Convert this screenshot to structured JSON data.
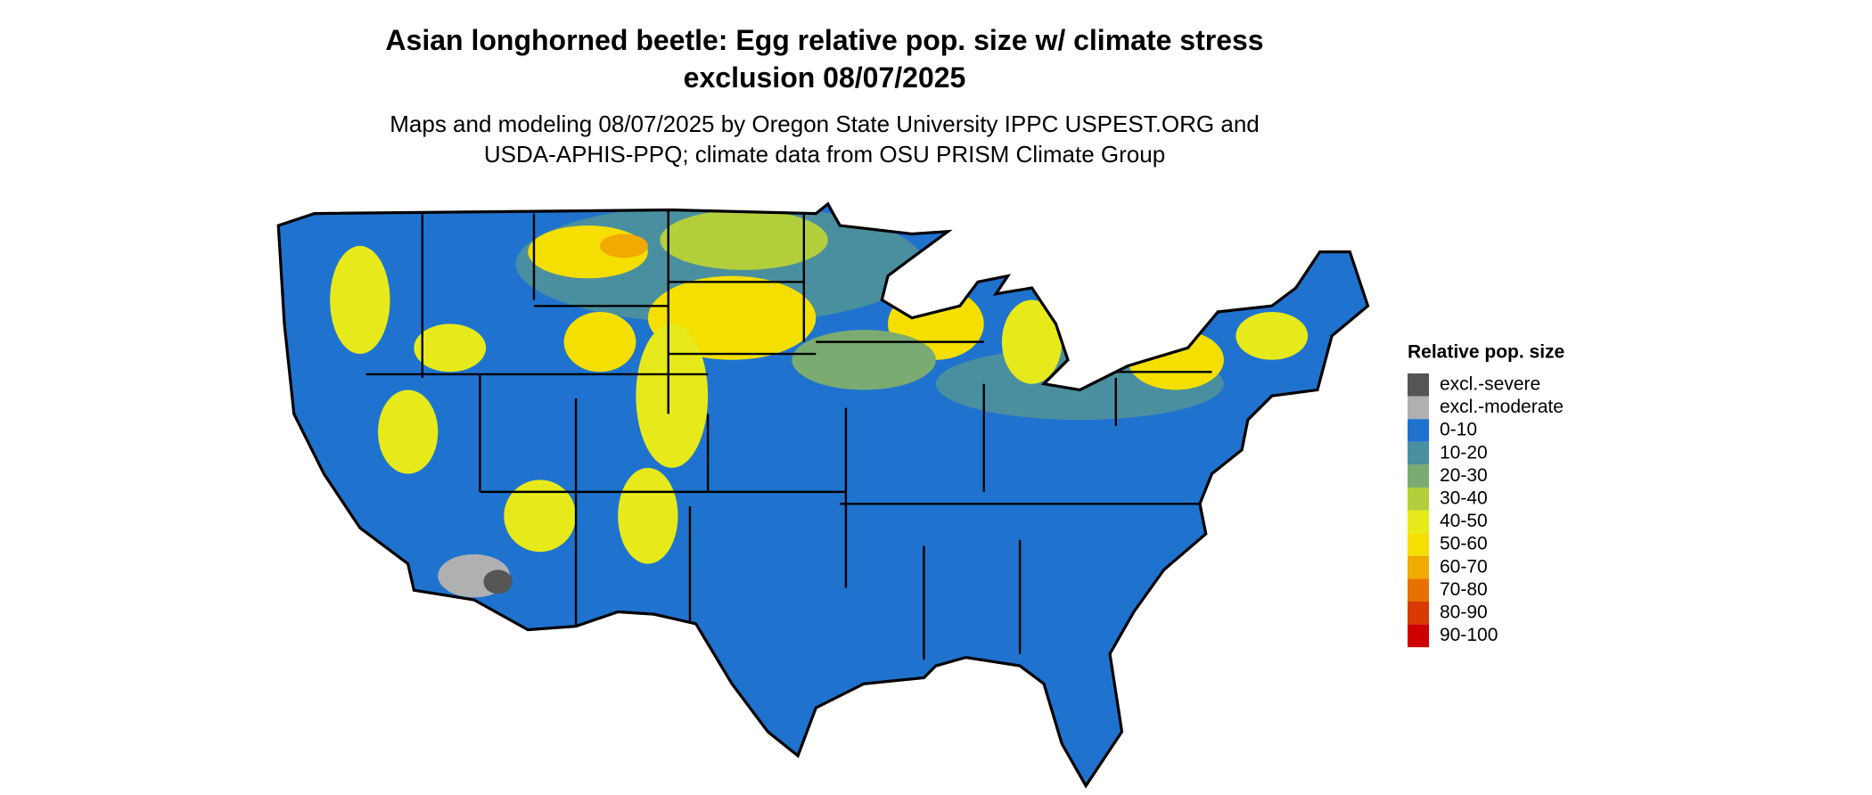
{
  "header": {
    "title": "Asian longhorned beetle: Egg relative pop. size w/ climate stress exclusion 08/07/2025",
    "subtitle": "Maps and modeling 08/07/2025 by Oregon State University IPPC USPEST.ORG and USDA-APHIS-PPQ; climate data from OSU PRISM Climate Group"
  },
  "legend": {
    "title": "Relative pop. size",
    "items": [
      {
        "label": "excl.-severe",
        "color": "#555555"
      },
      {
        "label": "excl.-moderate",
        "color": "#b0b0b0"
      },
      {
        "label": "0-10",
        "color": "#1f73cf"
      },
      {
        "label": "10-20",
        "color": "#4a8fa0"
      },
      {
        "label": "20-30",
        "color": "#7aab70"
      },
      {
        "label": "30-40",
        "color": "#b4cf3c"
      },
      {
        "label": "40-50",
        "color": "#e6ea1a"
      },
      {
        "label": "50-60",
        "color": "#f5df00"
      },
      {
        "label": "60-70",
        "color": "#f0aa00"
      },
      {
        "label": "70-80",
        "color": "#e87000"
      },
      {
        "label": "80-90",
        "color": "#d83a00"
      },
      {
        "label": "90-100",
        "color": "#cc0000"
      }
    ]
  }
}
